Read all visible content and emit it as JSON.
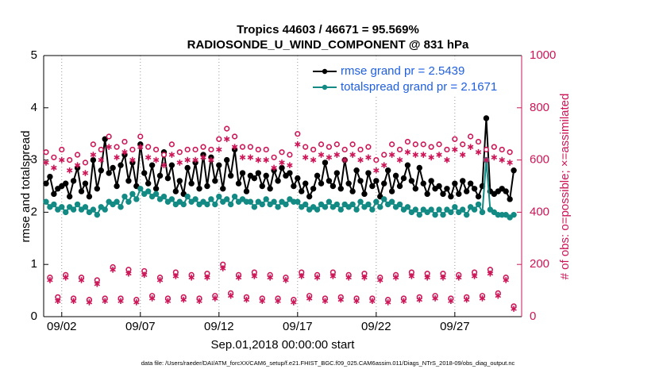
{
  "chart_data": {
    "type": "line",
    "title": [
      "Tropics 44603 / 46671 = 95.569%",
      "RADIOSONDE_U_WIND_COMPONENT @ 831 hPa"
    ],
    "xlabel": "Sep.01,2018 00:00:00 start",
    "ylabel": "rmse and totalspread",
    "y2label": "# of obs: o=possible; ×=assimilated",
    "footnote": "data file: /Users/raeder/DAI/ATM_forcXX/CAM6_setup/f.e21.FHIST_BGC.f09_025.CAM6assim.011/Diags_NTrS_2018-09/obs_diag_output.nc",
    "xlim": [
      -0.15,
      30.25
    ],
    "xticks": [
      {
        "value": 1,
        "label": "09/02"
      },
      {
        "value": 6,
        "label": "09/07"
      },
      {
        "value": 11,
        "label": "09/12"
      },
      {
        "value": 16,
        "label": "09/17"
      },
      {
        "value": 21,
        "label": "09/22"
      },
      {
        "value": 26,
        "label": "09/27"
      }
    ],
    "xgrid": true,
    "ylim": [
      0,
      5
    ],
    "yticks": [
      0,
      1,
      2,
      3,
      4,
      5
    ],
    "y2lim": [
      0,
      1000
    ],
    "y2ticks": [
      0,
      200,
      400,
      600,
      800,
      1000
    ],
    "y2color": "#cc1657",
    "legend": "upper right",
    "legend_text_color": "#1f5fe0",
    "x": [
      0,
      0.25,
      0.5,
      0.75,
      1,
      1.25,
      1.5,
      1.75,
      2,
      2.25,
      2.5,
      2.75,
      3,
      3.25,
      3.5,
      3.75,
      4,
      4.25,
      4.5,
      4.75,
      5,
      5.25,
      5.5,
      5.75,
      6,
      6.25,
      6.5,
      6.75,
      7,
      7.25,
      7.5,
      7.75,
      8,
      8.25,
      8.5,
      8.75,
      9,
      9.25,
      9.5,
      9.75,
      10,
      10.25,
      10.5,
      10.75,
      11,
      11.25,
      11.5,
      11.75,
      12,
      12.25,
      12.5,
      12.75,
      13,
      13.25,
      13.5,
      13.75,
      14,
      14.25,
      14.5,
      14.75,
      15,
      15.25,
      15.5,
      15.75,
      16,
      16.25,
      16.5,
      16.75,
      17,
      17.25,
      17.5,
      17.75,
      18,
      18.25,
      18.5,
      18.75,
      19,
      19.25,
      19.5,
      19.75,
      20,
      20.25,
      20.5,
      20.75,
      21,
      21.25,
      21.5,
      21.75,
      22,
      22.25,
      22.5,
      22.75,
      23,
      23.25,
      23.5,
      23.75,
      24,
      24.25,
      24.5,
      24.75,
      25,
      25.25,
      25.5,
      25.75,
      26,
      26.25,
      26.5,
      26.75,
      27,
      27.25,
      27.5,
      27.75,
      28,
      28.25,
      28.5,
      28.75,
      29,
      29.25,
      29.5,
      29.75
    ],
    "series": [
      {
        "name": "rmse grand pr = 2.5439",
        "color": "#000000",
        "marker": "o",
        "line": true,
        "values": [
          2.55,
          2.68,
          2.35,
          2.45,
          2.5,
          2.55,
          2.3,
          2.6,
          2.85,
          2.4,
          2.55,
          2.3,
          3.0,
          2.45,
          2.8,
          3.4,
          2.75,
          2.85,
          2.5,
          2.9,
          3.1,
          2.6,
          2.95,
          2.5,
          3.3,
          2.75,
          2.55,
          2.9,
          2.45,
          2.7,
          3.15,
          2.65,
          2.9,
          2.4,
          2.6,
          2.35,
          2.85,
          2.55,
          2.95,
          2.45,
          3.1,
          2.5,
          3.05,
          2.6,
          2.9,
          2.45,
          3.0,
          2.7,
          3.2,
          2.55,
          2.75,
          2.4,
          2.7,
          2.65,
          2.75,
          2.5,
          2.7,
          2.45,
          2.8,
          2.6,
          2.85,
          2.7,
          2.75,
          2.5,
          2.65,
          2.4,
          2.55,
          2.3,
          2.45,
          2.7,
          2.55,
          2.95,
          2.6,
          2.5,
          2.75,
          2.45,
          3.0,
          2.55,
          2.4,
          2.8,
          2.6,
          2.35,
          2.75,
          2.5,
          2.6,
          2.3,
          2.55,
          2.8,
          2.4,
          2.7,
          2.5,
          2.65,
          2.9,
          2.6,
          2.45,
          2.85,
          2.55,
          2.35,
          2.6,
          2.45,
          2.5,
          2.35,
          2.45,
          2.3,
          2.55,
          2.35,
          2.6,
          2.4,
          2.55,
          2.45,
          2.3,
          2.5,
          3.8,
          2.4,
          2.35,
          2.4,
          2.45,
          2.4,
          2.25,
          2.8
        ]
      },
      {
        "name": "totalspread grand pr = 2.1671",
        "color": "#138a84",
        "marker": "o",
        "line": true,
        "values": [
          2.2,
          2.1,
          2.15,
          2.05,
          2.1,
          2.0,
          2.1,
          2.05,
          2.15,
          2.05,
          2.1,
          2.0,
          2.05,
          1.95,
          2.1,
          2.05,
          2.2,
          2.15,
          2.2,
          2.1,
          2.3,
          2.2,
          2.35,
          2.25,
          2.45,
          2.35,
          2.4,
          2.3,
          2.35,
          2.25,
          2.3,
          2.2,
          2.25,
          2.15,
          2.2,
          2.15,
          2.3,
          2.2,
          2.25,
          2.15,
          2.2,
          2.15,
          2.25,
          2.15,
          2.3,
          2.2,
          2.25,
          2.15,
          2.3,
          2.2,
          2.25,
          2.2,
          2.2,
          2.1,
          2.2,
          2.15,
          2.25,
          2.15,
          2.2,
          2.1,
          2.2,
          2.15,
          2.25,
          2.2,
          2.2,
          2.1,
          2.15,
          2.05,
          2.1,
          2.05,
          2.15,
          2.1,
          2.2,
          2.1,
          2.15,
          2.05,
          2.15,
          2.1,
          2.15,
          2.05,
          2.2,
          2.1,
          2.15,
          2.05,
          2.2,
          2.1,
          2.25,
          2.15,
          2.2,
          2.1,
          2.15,
          2.05,
          2.1,
          2.0,
          2.05,
          1.95,
          2.05,
          2.0,
          2.05,
          1.95,
          2.05,
          1.95,
          2.05,
          2.0,
          2.1,
          2.0,
          2.05,
          1.95,
          2.1,
          2.05,
          2.15,
          2.0,
          3.0,
          2.05,
          2.0,
          1.95,
          1.95,
          1.95,
          1.9,
          1.95
        ]
      },
      {
        "color": "#cc1657",
        "marker": "o",
        "line": false,
        "axis": "y2",
        "values": [
          630,
          150,
          610,
          75,
          640,
          160,
          600,
          70,
          620,
          150,
          590,
          65,
          660,
          140,
          640,
          70,
          690,
          190,
          650,
          70,
          670,
          180,
          640,
          65,
          690,
          175,
          650,
          80,
          640,
          150,
          620,
          70,
          660,
          170,
          630,
          75,
          640,
          160,
          640,
          70,
          650,
          165,
          640,
          80,
          680,
          200,
          720,
          90,
          690,
          160,
          650,
          75,
          650,
          170,
          640,
          70,
          640,
          160,
          610,
          70,
          630,
          150,
          620,
          65,
          700,
          170,
          650,
          80,
          640,
          160,
          660,
          70,
          650,
          170,
          660,
          75,
          640,
          160,
          660,
          70,
          640,
          165,
          650,
          70,
          600,
          150,
          620,
          65,
          660,
          160,
          640,
          70,
          670,
          170,
          660,
          75,
          660,
          165,
          650,
          80,
          660,
          165,
          640,
          70,
          680,
          160,
          660,
          75,
          690,
          170,
          670,
          80,
          640,
          180,
          650,
          90,
          640,
          150,
          630,
          40
        ]
      },
      {
        "color": "#cc1657",
        "marker": "*",
        "line": false,
        "axis": "y2",
        "values": [
          590,
          140,
          570,
          60,
          600,
          150,
          560,
          60,
          580,
          140,
          550,
          55,
          620,
          125,
          600,
          60,
          650,
          180,
          610,
          60,
          630,
          165,
          600,
          55,
          650,
          160,
          610,
          70,
          600,
          140,
          580,
          60,
          620,
          155,
          590,
          65,
          600,
          150,
          600,
          60,
          610,
          150,
          600,
          70,
          640,
          185,
          680,
          80,
          650,
          150,
          610,
          65,
          610,
          155,
          600,
          60,
          600,
          150,
          570,
          60,
          590,
          140,
          580,
          55,
          660,
          155,
          610,
          70,
          600,
          150,
          620,
          60,
          610,
          155,
          620,
          65,
          600,
          150,
          620,
          60,
          600,
          150,
          610,
          60,
          560,
          140,
          580,
          55,
          620,
          150,
          600,
          60,
          630,
          155,
          620,
          65,
          620,
          150,
          610,
          70,
          620,
          150,
          600,
          60,
          640,
          150,
          620,
          65,
          650,
          155,
          630,
          70,
          600,
          165,
          610,
          80,
          600,
          140,
          590,
          30
        ]
      }
    ]
  }
}
